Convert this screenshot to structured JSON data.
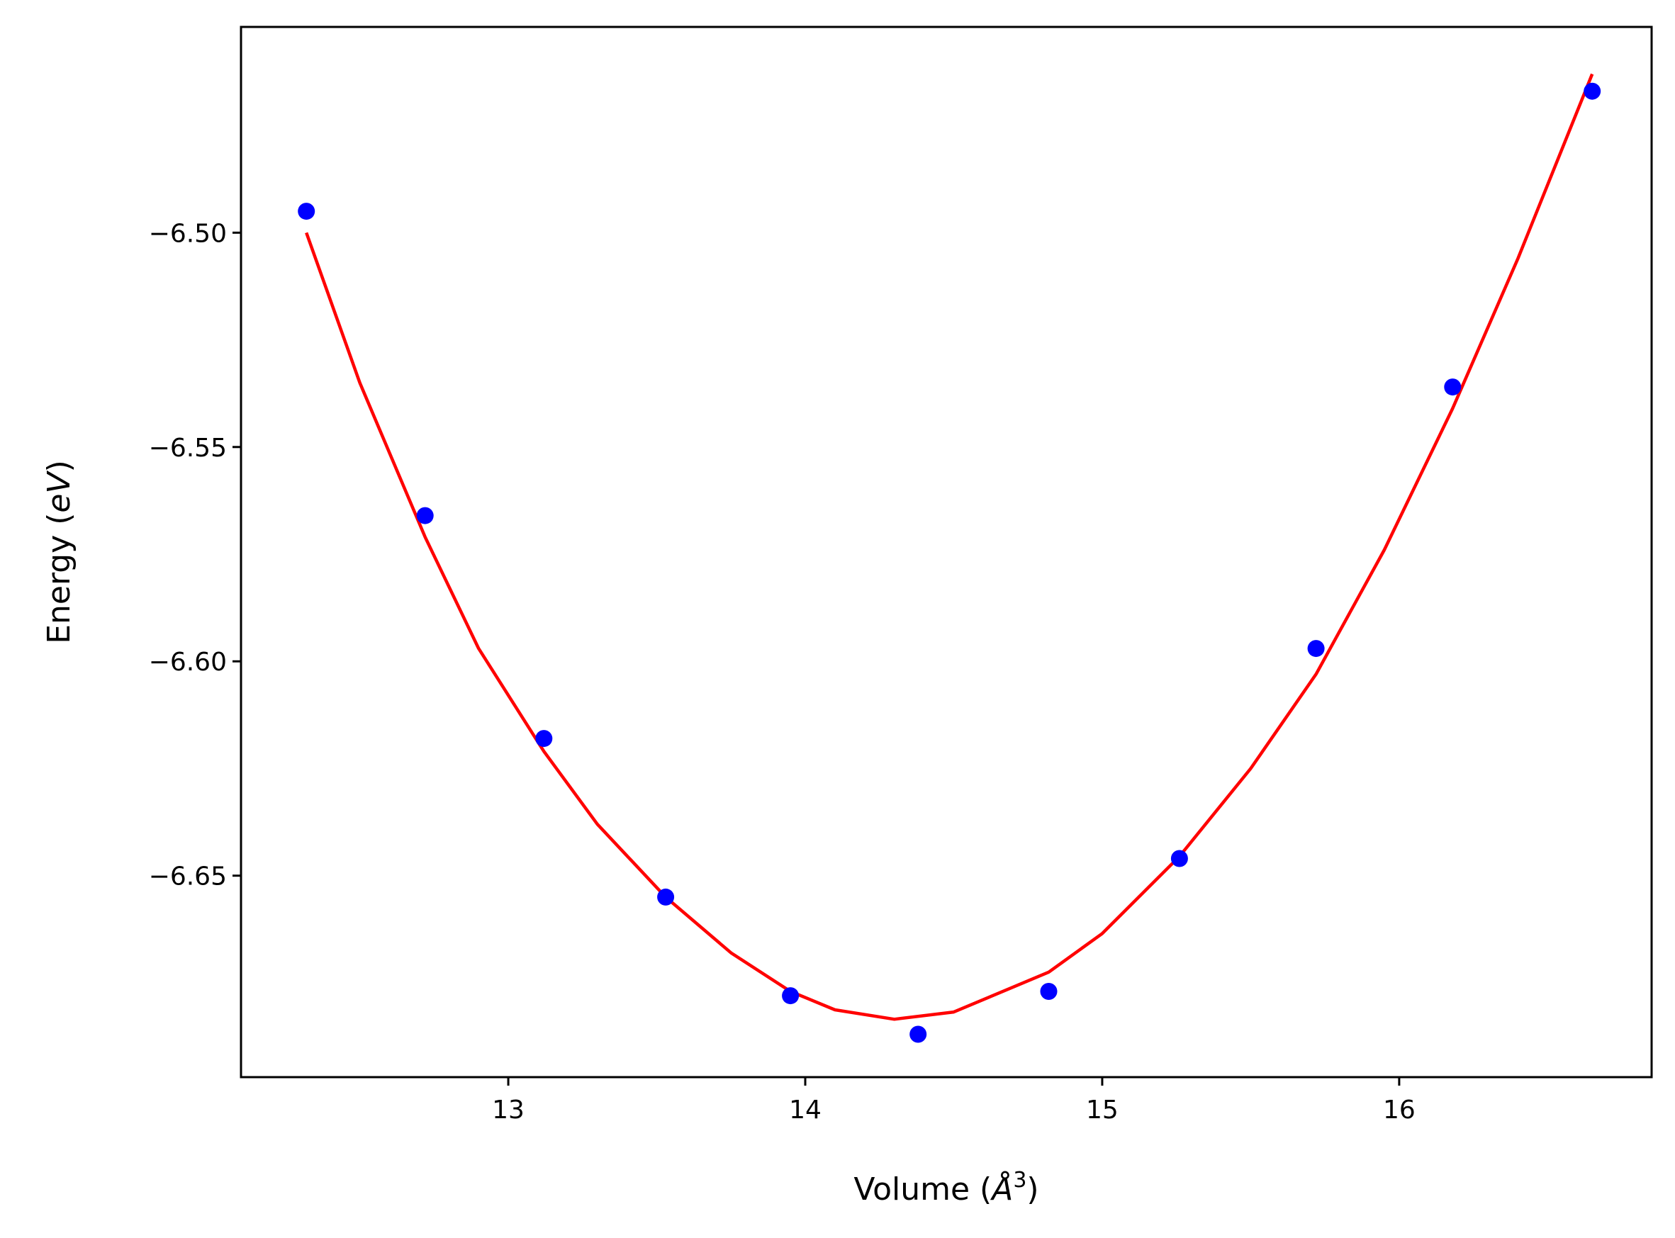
{
  "chart_data": {
    "type": "scatter",
    "title": "",
    "xlabel": {
      "text": "Volume (",
      "symbol": "Å",
      "superscript": "3",
      "close": ")"
    },
    "ylabel": {
      "text": "Energy (",
      "italic": "eV",
      "close": ")"
    },
    "xlim": [
      12.1,
      16.85
    ],
    "ylim": [
      -6.697,
      -6.452
    ],
    "xticks": [
      13,
      14,
      15,
      16
    ],
    "xtick_labels": [
      "13",
      "14",
      "15",
      "16"
    ],
    "yticks": [
      -6.5,
      -6.55,
      -6.6,
      -6.65
    ],
    "ytick_labels": [
      "−6.50",
      "−6.55",
      "−6.60",
      "−6.65"
    ],
    "grid": false,
    "series": [
      {
        "kind": "points",
        "color": "#0000ff",
        "x": [
          12.32,
          12.72,
          13.12,
          13.53,
          13.95,
          14.38,
          14.82,
          15.26,
          15.72,
          16.18,
          16.65
        ],
        "y": [
          -6.495,
          -6.566,
          -6.618,
          -6.655,
          -6.678,
          -6.687,
          -6.677,
          -6.646,
          -6.597,
          -6.536,
          -6.467
        ]
      },
      {
        "kind": "fit-line",
        "color": "#ff0000",
        "x": [
          12.32,
          12.5,
          12.72,
          12.9,
          13.12,
          13.3,
          13.53,
          13.75,
          13.95,
          14.1,
          14.3,
          14.5,
          14.82,
          15.0,
          15.26,
          15.5,
          15.72,
          15.95,
          16.18,
          16.4,
          16.65
        ],
        "y": [
          -6.5,
          -6.535,
          -6.571,
          -6.597,
          -6.621,
          -6.638,
          -6.655,
          -6.668,
          -6.677,
          -6.6813,
          -6.6835,
          -6.6818,
          -6.6725,
          -6.6635,
          -6.6455,
          -6.625,
          -6.603,
          -6.574,
          -6.541,
          -6.506,
          -6.463
        ]
      }
    ]
  }
}
